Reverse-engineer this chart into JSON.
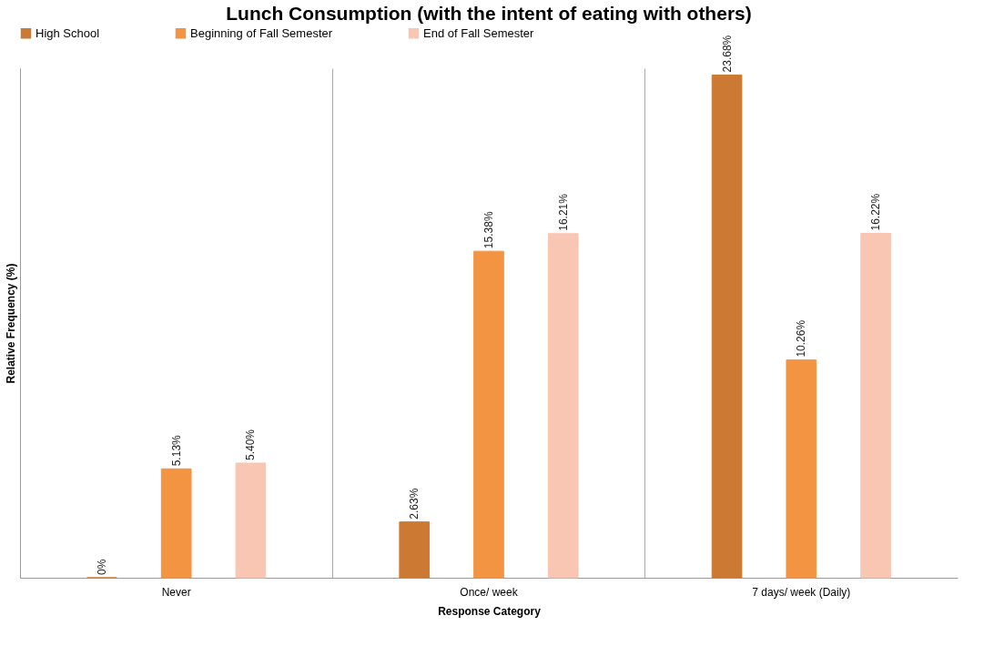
{
  "chart_data": {
    "type": "bar",
    "title": "Lunch Consumption (with the intent of eating with others)",
    "xlabel": "Response Category",
    "ylabel": "Relative Frequency (%)",
    "categories": [
      "Never",
      "Once/ week",
      "7 days/ week (Daily)"
    ],
    "series": [
      {
        "name": "High School",
        "color": "#cc7a33",
        "values": [
          0,
          2.63,
          23.68
        ],
        "value_labels": [
          "0%",
          "2.63%",
          "23.68%"
        ]
      },
      {
        "name": "Beginning of Fall Semester",
        "color": "#f39443",
        "values": [
          5.13,
          15.38,
          10.26
        ],
        "value_labels": [
          "5.13%",
          "15.38%",
          "10.26%"
        ]
      },
      {
        "name": "End of Fall Semester",
        "color": "#f8c6b3",
        "values": [
          5.4,
          16.21,
          16.22
        ],
        "value_labels": [
          "5.40%",
          "16.21%",
          "16.22%"
        ]
      }
    ],
    "legend": "top",
    "grid": "x",
    "tick_labels": "x"
  }
}
